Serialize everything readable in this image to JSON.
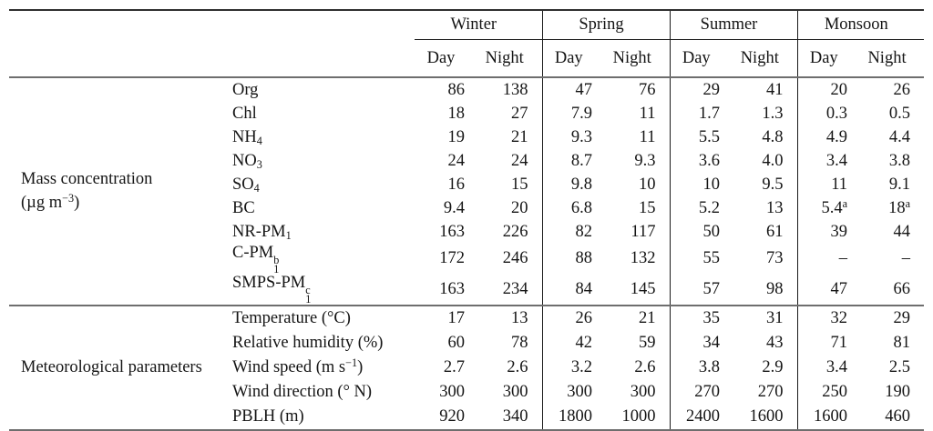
{
  "meta": {
    "background": "#ffffff",
    "text_color": "#151515",
    "rule_dark": "#2f2f2f",
    "rule_gray": "#6e6e6e",
    "divider_color": "#1a1a1a"
  },
  "table": {
    "seasons": [
      "Winter",
      "Spring",
      "Summer",
      "Monsoon"
    ],
    "subheaders": [
      "Day",
      "Night"
    ],
    "sections": [
      {
        "name": "mass-concentration",
        "group_label_lines": [
          [
            {
              "t": "Mass concentration"
            }
          ],
          [
            {
              "t": "(µg m"
            },
            {
              "sup": "−3"
            },
            {
              "t": ")"
            }
          ]
        ],
        "rows": [
          {
            "label": [
              {
                "t": "Org"
              }
            ],
            "values": [
              "86",
              "138",
              "47",
              "76",
              "29",
              "41",
              "20",
              "26"
            ]
          },
          {
            "label": [
              {
                "t": "Chl"
              }
            ],
            "values": [
              "18",
              "27",
              "7.9",
              "11",
              "1.7",
              "1.3",
              "0.3",
              "0.5"
            ]
          },
          {
            "label": [
              {
                "t": "NH"
              },
              {
                "sub": "4"
              }
            ],
            "values": [
              "19",
              "21",
              "9.3",
              "11",
              "5.5",
              "4.8",
              "4.9",
              "4.4"
            ]
          },
          {
            "label": [
              {
                "t": "NO"
              },
              {
                "sub": "3"
              }
            ],
            "values": [
              "24",
              "24",
              "8.7",
              "9.3",
              "3.6",
              "4.0",
              "3.4",
              "3.8"
            ]
          },
          {
            "label": [
              {
                "t": "SO"
              },
              {
                "sub": "4"
              }
            ],
            "values": [
              "16",
              "15",
              "9.8",
              "10",
              "10",
              "9.5",
              "11",
              "9.1"
            ]
          },
          {
            "label": [
              {
                "t": "BC"
              }
            ],
            "values": [
              "9.4",
              "20",
              "6.8",
              "15",
              "5.2",
              "13",
              [
                {
                  "t": "5.4"
                },
                {
                  "sup": "a"
                }
              ],
              [
                {
                  "t": "18"
                },
                {
                  "sup": "a"
                }
              ]
            ]
          },
          {
            "label": [
              {
                "t": "NR-PM"
              },
              {
                "sub": "1"
              }
            ],
            "values": [
              "163",
              "226",
              "82",
              "117",
              "50",
              "61",
              "39",
              "44"
            ]
          },
          {
            "label": [
              {
                "t": "C-PM"
              },
              {
                "stack": {
                  "sup": "b",
                  "sub": "1"
                }
              }
            ],
            "values": [
              "172",
              "246",
              "88",
              "132",
              "55",
              "73",
              "–",
              "–"
            ]
          },
          {
            "label": [
              {
                "t": "SMPS-PM"
              },
              {
                "stack": {
                  "sup": "c",
                  "sub": "1"
                }
              }
            ],
            "values": [
              "163",
              "234",
              "84",
              "145",
              "57",
              "98",
              "47",
              "66"
            ]
          }
        ]
      },
      {
        "name": "meteorological-parameters",
        "group_label_lines": [
          [
            {
              "t": "Meteorological parameters"
            }
          ]
        ],
        "rows": [
          {
            "label": [
              {
                "t": "Temperature (°C)"
              }
            ],
            "values": [
              "17",
              "13",
              "26",
              "21",
              "35",
              "31",
              "32",
              "29"
            ]
          },
          {
            "label": [
              {
                "t": "Relative humidity (%)"
              }
            ],
            "values": [
              "60",
              "78",
              "42",
              "59",
              "34",
              "43",
              "71",
              "81"
            ]
          },
          {
            "label": [
              {
                "t": "Wind speed (m s"
              },
              {
                "sup": "−1"
              },
              {
                "t": ")"
              }
            ],
            "values": [
              "2.7",
              "2.6",
              "3.2",
              "2.6",
              "3.8",
              "2.9",
              "3.4",
              "2.5"
            ]
          },
          {
            "label": [
              {
                "t": "Wind direction (° N)"
              }
            ],
            "values": [
              "300",
              "300",
              "300",
              "300",
              "270",
              "270",
              "250",
              "190"
            ]
          },
          {
            "label": [
              {
                "t": "PBLH (m)"
              }
            ],
            "values": [
              "920",
              "340",
              "1800",
              "1000",
              "2400",
              "1600",
              "1600",
              "460"
            ]
          }
        ]
      }
    ]
  }
}
